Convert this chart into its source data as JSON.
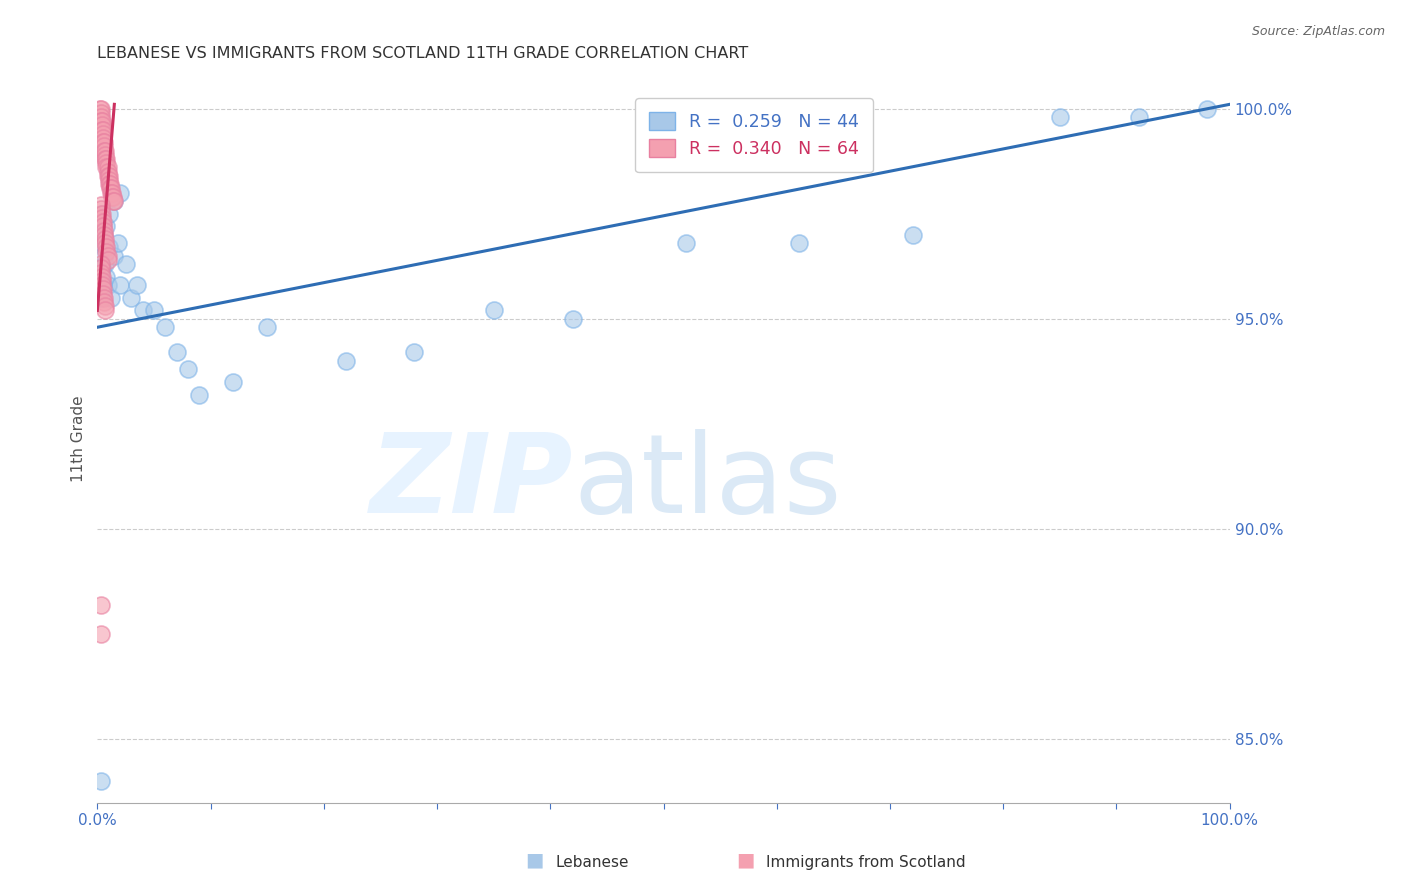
{
  "title": "LEBANESE VS IMMIGRANTS FROM SCOTLAND 11TH GRADE CORRELATION CHART",
  "source": "Source: ZipAtlas.com",
  "ylabel": "11th Grade",
  "ytick_labels": [
    "100.0%",
    "95.0%",
    "90.0%",
    "85.0%"
  ],
  "ytick_values": [
    1.0,
    0.95,
    0.9,
    0.85
  ],
  "blue_color_face": "#A8C8E8",
  "blue_color_edge": "#7EB3E8",
  "pink_color_face": "#F4A0B0",
  "pink_color_edge": "#E880A0",
  "blue_line_color": "#2E6DB4",
  "pink_line_color": "#CC3060",
  "right_axis_color": "#4472C4",
  "xmin": 0.0,
  "xmax": 1.0,
  "ymin": 0.835,
  "ymax": 1.008,
  "blue_x": [
    0.002,
    0.003,
    0.004,
    0.005,
    0.006,
    0.007,
    0.008,
    0.009,
    0.01,
    0.012,
    0.015,
    0.018,
    0.02,
    0.025,
    0.03,
    0.035,
    0.04,
    0.05,
    0.06,
    0.07,
    0.08,
    0.09,
    0.12,
    0.15,
    0.22,
    0.28,
    0.35,
    0.42,
    0.002,
    0.003,
    0.004,
    0.005,
    0.006,
    0.008,
    0.01,
    0.015,
    0.02,
    0.52,
    0.62,
    0.72,
    0.85,
    0.92,
    0.98,
    0.003
  ],
  "blue_y": [
    0.97,
    0.975,
    0.968,
    0.972,
    0.965,
    0.963,
    0.96,
    0.958,
    0.967,
    0.955,
    0.965,
    0.968,
    0.958,
    0.963,
    0.955,
    0.958,
    0.952,
    0.952,
    0.948,
    0.942,
    0.938,
    0.932,
    0.935,
    0.948,
    0.94,
    0.942,
    0.952,
    0.95,
    0.96,
    0.955,
    0.962,
    0.958,
    0.97,
    0.972,
    0.975,
    0.978,
    0.98,
    0.968,
    0.968,
    0.97,
    0.998,
    0.998,
    1.0,
    0.84
  ],
  "pink_x": [
    0.002,
    0.003,
    0.003,
    0.003,
    0.003,
    0.004,
    0.004,
    0.004,
    0.005,
    0.005,
    0.005,
    0.005,
    0.006,
    0.006,
    0.006,
    0.007,
    0.007,
    0.007,
    0.008,
    0.008,
    0.008,
    0.009,
    0.009,
    0.009,
    0.01,
    0.01,
    0.01,
    0.011,
    0.011,
    0.012,
    0.012,
    0.013,
    0.013,
    0.014,
    0.014,
    0.015,
    0.003,
    0.003,
    0.004,
    0.004,
    0.005,
    0.005,
    0.006,
    0.006,
    0.007,
    0.007,
    0.008,
    0.008,
    0.009,
    0.009,
    0.003,
    0.003,
    0.003,
    0.004,
    0.004,
    0.004,
    0.005,
    0.005,
    0.006,
    0.006,
    0.007,
    0.007,
    0.003,
    0.003
  ],
  "pink_y": [
    1.0,
    1.0,
    0.999,
    0.998,
    0.997,
    0.997,
    0.996,
    0.995,
    0.995,
    0.994,
    0.993,
    0.992,
    0.992,
    0.991,
    0.99,
    0.99,
    0.989,
    0.988,
    0.988,
    0.987,
    0.986,
    0.986,
    0.985,
    0.984,
    0.984,
    0.983,
    0.982,
    0.982,
    0.981,
    0.981,
    0.98,
    0.98,
    0.979,
    0.979,
    0.978,
    0.978,
    0.977,
    0.976,
    0.975,
    0.974,
    0.973,
    0.972,
    0.971,
    0.97,
    0.969,
    0.968,
    0.967,
    0.966,
    0.965,
    0.964,
    0.963,
    0.962,
    0.961,
    0.96,
    0.959,
    0.958,
    0.957,
    0.956,
    0.955,
    0.954,
    0.953,
    0.952,
    0.882,
    0.875
  ],
  "blue_line_x0": 0.0,
  "blue_line_x1": 1.0,
  "blue_line_y0": 0.948,
  "blue_line_y1": 1.001,
  "pink_line_x0": 0.0,
  "pink_line_x1": 0.015,
  "pink_line_y0": 0.952,
  "pink_line_y1": 1.001
}
